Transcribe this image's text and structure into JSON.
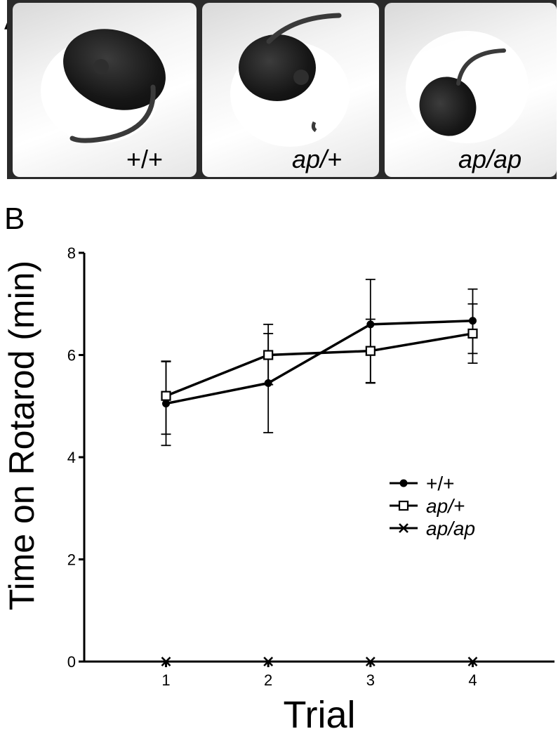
{
  "panels": {
    "a_letter": "A",
    "b_letter": "B"
  },
  "photo": {
    "labels": [
      "+/+",
      "ap/+",
      "ap/ap"
    ]
  },
  "chart_data": {
    "type": "line",
    "xlabel": "Trial",
    "ylabel": "Time on Rotarod (min)",
    "x": [
      1,
      2,
      3,
      4
    ],
    "xticks": [
      "1",
      "2",
      "3",
      "4"
    ],
    "xlim": [
      0.2,
      4.8
    ],
    "ylim": [
      0,
      8
    ],
    "yticks": [
      "0",
      "2",
      "4",
      "6",
      "8"
    ],
    "legend_position": "right",
    "series": [
      {
        "name": "+/+",
        "marker": "filled-circle",
        "values": [
          5.05,
          5.45,
          6.6,
          6.67
        ],
        "err_low": [
          0.82,
          0.97,
          1.15,
          0.64
        ],
        "err_high": [
          0.82,
          0.97,
          0.88,
          0.62
        ]
      },
      {
        "name": "ap/+",
        "marker": "open-square",
        "values": [
          5.2,
          6.0,
          6.08,
          6.42
        ],
        "err_low": [
          0.75,
          0.58,
          0.62,
          0.58
        ],
        "err_high": [
          0.68,
          0.6,
          0.62,
          0.58
        ]
      },
      {
        "name": "ap/ap",
        "marker": "x",
        "values": [
          0,
          0,
          0,
          0
        ]
      }
    ],
    "colors": {
      "line": "#000000"
    }
  }
}
